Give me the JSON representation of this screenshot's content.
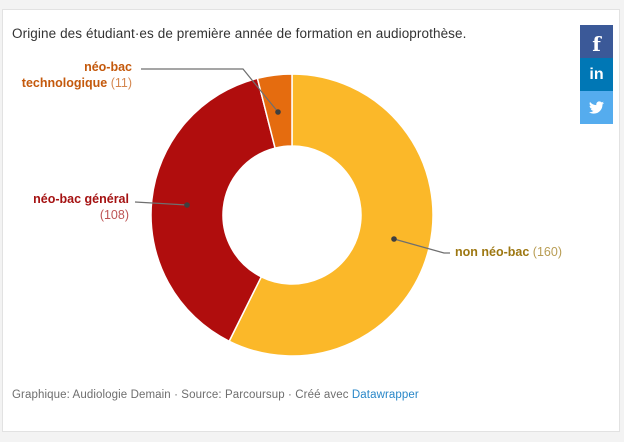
{
  "chart_data": {
    "type": "pie",
    "subtype": "donut",
    "title": "Origine des étudiant·es de première année de formation en audioprothèse.",
    "direction": "clockwise",
    "start_angle_deg": 0,
    "inner_radius_ratio": 0.49,
    "legend_position": "outside-callout-labels",
    "slices": [
      {
        "label": "non néo-bac",
        "value": 160,
        "value_label": "(160)",
        "color": "#FBB829",
        "label_color": "#9D7711"
      },
      {
        "label": "néo-bac général",
        "value": 108,
        "value_label": "(108)",
        "color": "#B00D0D",
        "label_color": "#A51212"
      },
      {
        "label": "néo-bac technologique",
        "value": 11,
        "value_label": "(11)",
        "color": "#E56C0F",
        "label_color": "#C4590C"
      }
    ]
  },
  "social": {
    "buttons": [
      {
        "name": "facebook",
        "glyph": "f",
        "color": "#3B5998"
      },
      {
        "name": "linkedin",
        "glyph": "in",
        "color": "#0077B5"
      },
      {
        "name": "twitter",
        "glyph": "",
        "color": "#55ACEE"
      }
    ]
  },
  "footer": {
    "text": "Graphique: Audiologie Demain · Source: Parcoursup · Créé avec",
    "link_label": "Datawrapper"
  }
}
